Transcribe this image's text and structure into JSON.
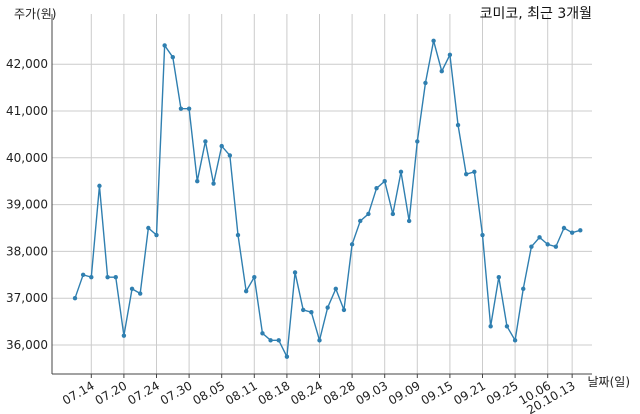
{
  "chart_data": {
    "type": "line",
    "title": "코미코, 최근 3개월",
    "ylabel": "주가(원)",
    "xlabel": "날짜(일)",
    "ylim": [
      35400,
      42900
    ],
    "yticks": [
      36000,
      37000,
      38000,
      39000,
      40000,
      41000,
      42000
    ],
    "ytick_labels": [
      "36,000",
      "37,000",
      "38,000",
      "39,000",
      "40,000",
      "41,000",
      "42,000"
    ],
    "xtick_labels": [
      "07.14",
      "07.20",
      "07.24",
      "07.30",
      "08.05",
      "08.11",
      "08.18",
      "08.24",
      "08.28",
      "09.03",
      "09.09",
      "09.15",
      "09.21",
      "09.25",
      "10.06",
      "20.10.13"
    ],
    "xtick_index": [
      2,
      6,
      10,
      14,
      18,
      22,
      26,
      30,
      34,
      38,
      42,
      46,
      50,
      54,
      58,
      61
    ],
    "grid": true,
    "line_color": "#2f7fb0",
    "series": [
      {
        "values": [
          37000,
          37500,
          37450,
          39400,
          37450,
          37450,
          36200,
          37200,
          37100,
          38500,
          38350,
          42400,
          42150,
          41050,
          41050,
          39500,
          40350,
          39450,
          40250,
          40050,
          38350,
          37150,
          37450,
          36250,
          36100,
          36100,
          35750,
          37550,
          36750,
          36700,
          36100,
          36800,
          37200,
          36750,
          38150,
          38650,
          38800,
          39350,
          39500,
          38800,
          39700,
          38650,
          40350,
          41600,
          42500,
          41850,
          42200,
          40700,
          39650,
          39700,
          38350,
          36400,
          37450,
          36400,
          36100,
          37200,
          38100,
          38300,
          38150,
          38100,
          38500,
          38400,
          38450
        ]
      }
    ]
  }
}
